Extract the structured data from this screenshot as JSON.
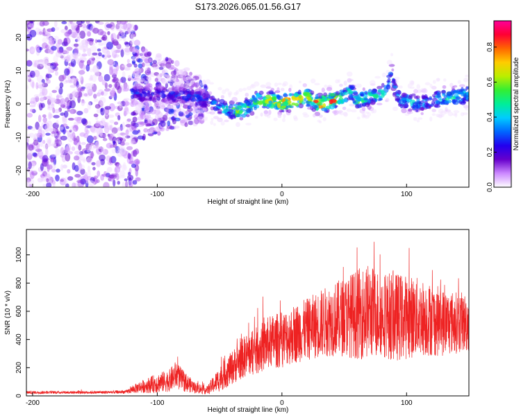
{
  "figure_title": "S173.2026.065.01.56.G17",
  "colors": {
    "snr_line": "#ee2222",
    "axis": "#000000"
  },
  "chart_data": [
    {
      "type": "heatmap",
      "title": "S173.2026.065.01.56.G17",
      "xlabel": "Height of straight line (km)",
      "ylabel": "Frequency (Hz)",
      "xlim": [
        -205,
        150
      ],
      "ylim": [
        -25,
        25
      ],
      "xticks": [
        -200,
        -100,
        0,
        100
      ],
      "yticks": [
        -20,
        -10,
        0,
        10,
        20
      ],
      "colorbar": {
        "label": "Normalized spectral amplitude",
        "range": [
          0,
          0.95
        ],
        "ticks": [
          0.0,
          0.2,
          0.4,
          0.6,
          0.8
        ],
        "tick_labels": [
          "0.0",
          "0.2",
          "0.4",
          "0.6",
          "0.8"
        ],
        "colormap": [
          "#ffffff",
          "#cc88ff",
          "#6600cc",
          "#2200ee",
          "#0066ff",
          "#00ccff",
          "#00ee99",
          "#33ee33",
          "#bbee00",
          "#ffcc00",
          "#ff6600",
          "#ff0033",
          "#ff0099"
        ]
      },
      "ridge_x": [
        -120,
        -100,
        -80,
        -60,
        -50,
        -40,
        -35,
        -30,
        -20,
        -10,
        0,
        10,
        20,
        30,
        40,
        50,
        55,
        60,
        70,
        80,
        85,
        88,
        90,
        95,
        100,
        110,
        120,
        130,
        140,
        150
      ],
      "ridge_freq": [
        3,
        3,
        2.5,
        1,
        -1,
        -2,
        -2,
        -1.5,
        1,
        1,
        0.5,
        1,
        2,
        0,
        1,
        2,
        4,
        1,
        2,
        3,
        5,
        11,
        5,
        1,
        1,
        0,
        1,
        2,
        2,
        3
      ],
      "ridge_amp": [
        0.3,
        0.25,
        0.3,
        0.35,
        0.4,
        0.5,
        0.7,
        0.6,
        0.6,
        0.7,
        0.8,
        0.75,
        0.7,
        0.8,
        0.8,
        0.6,
        0.5,
        0.55,
        0.5,
        0.5,
        0.4,
        0.3,
        0.35,
        0.4,
        0.45,
        0.45,
        0.4,
        0.5,
        0.55,
        0.5
      ]
    },
    {
      "type": "line",
      "xlabel": "Height of straight line (km)",
      "ylabel": "SNR (10 * v/v)",
      "xlim": [
        -205,
        150
      ],
      "ylim": [
        0,
        1180
      ],
      "xticks": [
        -200,
        -100,
        0,
        100
      ],
      "yticks": [
        0,
        200,
        400,
        600,
        800,
        1000
      ],
      "series": [
        {
          "name": "SNR",
          "x": [
            -205,
            -180,
            -150,
            -125,
            -115,
            -100,
            -90,
            -85,
            -80,
            -70,
            -60,
            -50,
            -40,
            -30,
            -20,
            -10,
            0,
            10,
            20,
            30,
            40,
            50,
            60,
            70,
            80,
            90,
            100,
            110,
            120,
            130,
            140,
            150
          ],
          "mean": [
            25,
            25,
            25,
            28,
            60,
            90,
            110,
            150,
            110,
            60,
            40,
            120,
            200,
            280,
            320,
            380,
            400,
            440,
            470,
            510,
            540,
            560,
            580,
            600,
            580,
            560,
            560,
            560,
            540,
            520,
            520,
            520
          ],
          "amplitude": [
            10,
            10,
            10,
            12,
            40,
            70,
            80,
            100,
            80,
            40,
            30,
            90,
            120,
            150,
            170,
            190,
            200,
            210,
            220,
            240,
            260,
            280,
            320,
            340,
            300,
            320,
            300,
            280,
            260,
            240,
            220,
            210
          ]
        }
      ]
    }
  ]
}
